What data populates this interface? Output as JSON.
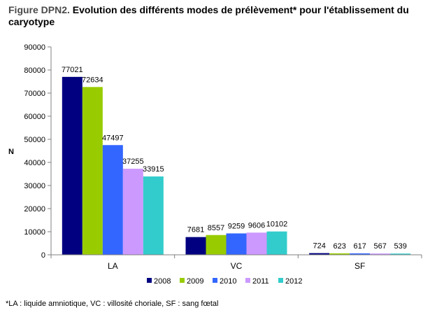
{
  "title_prefix": "Figure DPN2.",
  "title_main": "Evolution des différents modes de prélèvement* pour l'établissement du caryotype",
  "footnote": "*LA : liquide amniotique, VC : villosité choriale, SF : sang fœtal",
  "chart_data": {
    "type": "bar",
    "title": "Evolution des différents modes de prélèvement* pour l'établissement du caryotype",
    "xlabel": "",
    "ylabel": "N",
    "ylim": [
      0,
      90000
    ],
    "yticks": [
      0,
      10000,
      20000,
      30000,
      40000,
      50000,
      60000,
      70000,
      80000,
      90000
    ],
    "grid": false,
    "legend_position": "bottom",
    "categories": [
      "LA",
      "VC",
      "SF"
    ],
    "series": [
      {
        "name": "2008",
        "color": "#000080",
        "values": [
          77021,
          7681,
          724
        ]
      },
      {
        "name": "2009",
        "color": "#99CC00",
        "values": [
          72634,
          8557,
          623
        ]
      },
      {
        "name": "2010",
        "color": "#3366FF",
        "values": [
          47497,
          9259,
          617
        ]
      },
      {
        "name": "2011",
        "color": "#CC99FF",
        "values": [
          37255,
          9606,
          567
        ]
      },
      {
        "name": "2012",
        "color": "#33CCCC",
        "values": [
          33915,
          10102,
          539
        ]
      }
    ]
  }
}
